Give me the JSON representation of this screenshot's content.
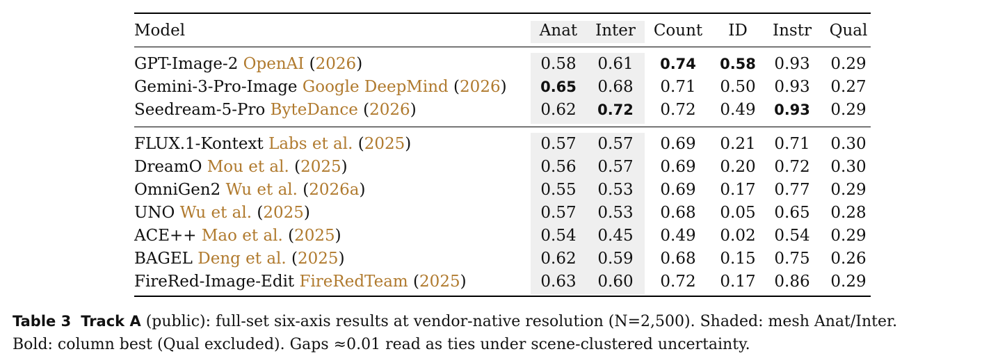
{
  "table": {
    "columns": [
      "Model",
      "Anat",
      "Inter",
      "Count",
      "ID",
      "Instr",
      "Qual"
    ],
    "groups": [
      [
        {
          "name": "GPT-Image-2",
          "cite_author": "OpenAI",
          "cite_year": "2026",
          "values": [
            "0.58",
            "0.61",
            "0.74",
            "0.58",
            "0.93",
            "0.29"
          ],
          "bold": [
            false,
            false,
            true,
            true,
            false,
            false
          ]
        },
        {
          "name": "Gemini-3-Pro-Image",
          "cite_author": "Google DeepMind",
          "cite_year": "2026",
          "values": [
            "0.65",
            "0.68",
            "0.71",
            "0.50",
            "0.93",
            "0.27"
          ],
          "bold": [
            true,
            false,
            false,
            false,
            false,
            false
          ]
        },
        {
          "name": "Seedream-5-Pro",
          "cite_author": "ByteDance",
          "cite_year": "2026",
          "values": [
            "0.62",
            "0.72",
            "0.72",
            "0.49",
            "0.93",
            "0.29"
          ],
          "bold": [
            false,
            true,
            false,
            false,
            true,
            false
          ]
        }
      ],
      [
        {
          "name": "FLUX.1-Kontext",
          "cite_author": "Labs et al.",
          "cite_year": "2025",
          "values": [
            "0.57",
            "0.57",
            "0.69",
            "0.21",
            "0.71",
            "0.30"
          ],
          "bold": [
            false,
            false,
            false,
            false,
            false,
            false
          ]
        },
        {
          "name": "DreamO",
          "cite_author": "Mou et al.",
          "cite_year": "2025",
          "values": [
            "0.56",
            "0.57",
            "0.69",
            "0.20",
            "0.72",
            "0.30"
          ],
          "bold": [
            false,
            false,
            false,
            false,
            false,
            false
          ]
        },
        {
          "name": "OmniGen2",
          "cite_author": "Wu et al.",
          "cite_year": "2026a",
          "values": [
            "0.55",
            "0.53",
            "0.69",
            "0.17",
            "0.77",
            "0.29"
          ],
          "bold": [
            false,
            false,
            false,
            false,
            false,
            false
          ]
        },
        {
          "name": "UNO",
          "cite_author": "Wu et al.",
          "cite_year": "2025",
          "values": [
            "0.57",
            "0.53",
            "0.68",
            "0.05",
            "0.65",
            "0.28"
          ],
          "bold": [
            false,
            false,
            false,
            false,
            false,
            false
          ]
        },
        {
          "name": "ACE++",
          "cite_author": "Mao et al.",
          "cite_year": "2025",
          "values": [
            "0.54",
            "0.45",
            "0.49",
            "0.02",
            "0.54",
            "0.29"
          ],
          "bold": [
            false,
            false,
            false,
            false,
            false,
            false
          ]
        },
        {
          "name": "BAGEL",
          "cite_author": "Deng et al.",
          "cite_year": "2025",
          "values": [
            "0.62",
            "0.59",
            "0.68",
            "0.15",
            "0.75",
            "0.26"
          ],
          "bold": [
            false,
            false,
            false,
            false,
            false,
            false
          ]
        },
        {
          "name": "FireRed-Image-Edit",
          "cite_author": "FireRedTeam",
          "cite_year": "2025",
          "values": [
            "0.63",
            "0.60",
            "0.72",
            "0.17",
            "0.86",
            "0.29"
          ],
          "bold": [
            false,
            false,
            false,
            false,
            false,
            false
          ]
        }
      ]
    ]
  },
  "caption": {
    "label": "Table 3",
    "track": "Track A",
    "line1": " (public): full-set six-axis results at vendor-native resolution (N=2,500). Shaded: mesh Anat/Inter.",
    "line2": "Bold: column best (Qual excluded). Gaps ≈0.01 read as ties under scene-clustered uncertainty."
  }
}
